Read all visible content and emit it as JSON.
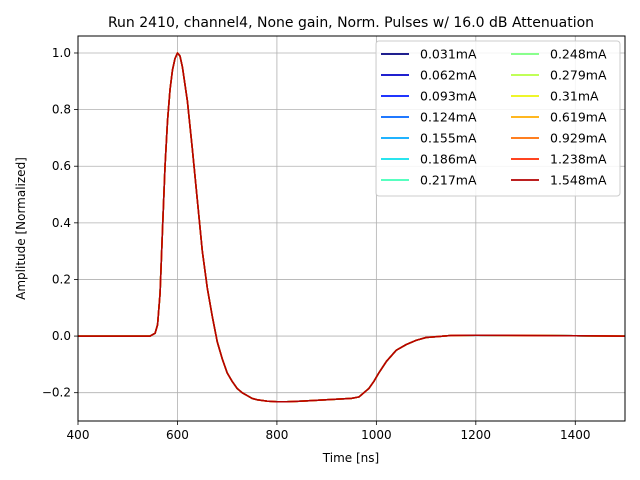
{
  "chart_data": {
    "type": "line",
    "title": "Run 2410, channel4, None gain, Norm. Pulses w/ 16.0 dB Attenuation",
    "xlabel": "Time [ns]",
    "ylabel": "Amplitude [Normalized]",
    "xlim": [
      400,
      1500
    ],
    "ylim": [
      -0.3,
      1.06
    ],
    "xticks": [
      400,
      600,
      800,
      1000,
      1200,
      1400
    ],
    "yticks": [
      -0.2,
      0.0,
      0.2,
      0.4,
      0.6,
      0.8,
      1.0
    ],
    "ytick_labels": [
      "−0.2",
      "0.0",
      "0.2",
      "0.4",
      "0.6",
      "0.8",
      "1.0"
    ],
    "grid": true,
    "legend_position": "top-right",
    "legend_columns": 2,
    "series": [
      {
        "name": "0.031mA",
        "color": "#00007f"
      },
      {
        "name": "0.062mA",
        "color": "#0000c8"
      },
      {
        "name": "0.093mA",
        "color": "#0018ff"
      },
      {
        "name": "0.124mA",
        "color": "#0064ff"
      },
      {
        "name": "0.155mA",
        "color": "#00a8ff"
      },
      {
        "name": "0.186mA",
        "color": "#0ce0ec"
      },
      {
        "name": "0.217mA",
        "color": "#3fffb7"
      },
      {
        "name": "0.248mA",
        "color": "#79ff7d"
      },
      {
        "name": "0.279mA",
        "color": "#b7ff3f"
      },
      {
        "name": "0.31mA",
        "color": "#ecf40c"
      },
      {
        "name": "0.619mA",
        "color": "#ffad00"
      },
      {
        "name": "0.929mA",
        "color": "#ff6d00"
      },
      {
        "name": "1.238mA",
        "color": "#ff2a00"
      },
      {
        "name": "1.548mA",
        "color": "#b30000"
      }
    ],
    "pulse_shape": {
      "x": [
        400,
        500,
        545,
        555,
        560,
        565,
        570,
        575,
        580,
        585,
        590,
        595,
        600,
        605,
        610,
        620,
        630,
        640,
        650,
        660,
        670,
        680,
        690,
        700,
        710,
        720,
        730,
        740,
        750,
        760,
        780,
        800,
        820,
        850,
        900,
        950,
        965,
        975,
        985,
        995,
        1005,
        1020,
        1040,
        1060,
        1080,
        1100,
        1150,
        1200,
        1300,
        1400,
        1500
      ],
      "y": [
        0.0,
        0.0,
        0.0,
        0.01,
        0.04,
        0.15,
        0.38,
        0.6,
        0.76,
        0.87,
        0.94,
        0.98,
        1.0,
        0.99,
        0.95,
        0.83,
        0.66,
        0.48,
        0.3,
        0.17,
        0.07,
        -0.02,
        -0.08,
        -0.13,
        -0.16,
        -0.185,
        -0.2,
        -0.21,
        -0.22,
        -0.225,
        -0.23,
        -0.232,
        -0.232,
        -0.23,
        -0.225,
        -0.22,
        -0.215,
        -0.2,
        -0.185,
        -0.16,
        -0.13,
        -0.09,
        -0.05,
        -0.03,
        -0.015,
        -0.005,
        0.002,
        0.003,
        0.002,
        0.001,
        0.0
      ]
    }
  }
}
